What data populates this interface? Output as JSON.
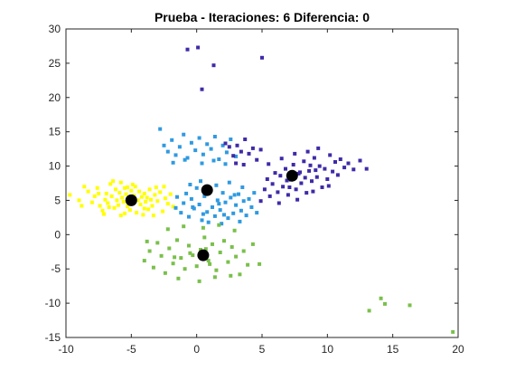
{
  "chart_data": {
    "type": "scatter",
    "title": "Prueba - Iteraciones: 6 Diferencia: 0",
    "xlabel": "",
    "ylabel": "",
    "xlim": [
      -10,
      20
    ],
    "ylim": [
      -15,
      30
    ],
    "xticks": [
      -10,
      -5,
      0,
      5,
      10,
      15,
      20
    ],
    "yticks": [
      -15,
      -10,
      -5,
      0,
      5,
      10,
      15,
      20,
      25,
      30
    ],
    "grid": false,
    "legend": "none",
    "axis_color": "#262626",
    "background": "#ffffff",
    "series": [
      {
        "color": "#ffff00",
        "points": [
          [
            -9.7,
            5.8
          ],
          [
            -9.0,
            5.0
          ],
          [
            -8.6,
            7.0
          ],
          [
            -8.3,
            6.3
          ],
          [
            -8.0,
            4.7
          ],
          [
            -7.8,
            5.6
          ],
          [
            -7.6,
            6.8
          ],
          [
            -7.4,
            4.2
          ],
          [
            -7.2,
            3.5
          ],
          [
            -7.0,
            5.1
          ],
          [
            -6.9,
            6.0
          ],
          [
            -6.8,
            4.6
          ],
          [
            -6.6,
            7.4
          ],
          [
            -6.5,
            5.6
          ],
          [
            -6.3,
            3.9
          ],
          [
            -6.2,
            6.6
          ],
          [
            -6.1,
            5.0
          ],
          [
            -6.0,
            4.3
          ],
          [
            -5.9,
            6.1
          ],
          [
            -5.8,
            2.8
          ],
          [
            -5.7,
            5.4
          ],
          [
            -5.6,
            4.8
          ],
          [
            -5.5,
            6.8
          ],
          [
            -5.4,
            5.9
          ],
          [
            -5.3,
            4.1
          ],
          [
            -5.2,
            5.2
          ],
          [
            -5.1,
            3.6
          ],
          [
            -5.0,
            6.4
          ],
          [
            -4.9,
            4.6
          ],
          [
            -4.8,
            5.7
          ],
          [
            -4.7,
            7.0
          ],
          [
            -4.6,
            3.2
          ],
          [
            -4.5,
            5.0
          ],
          [
            -4.4,
            6.3
          ],
          [
            -4.3,
            4.4
          ],
          [
            -4.2,
            5.5
          ],
          [
            -4.1,
            2.9
          ],
          [
            -4.0,
            6.0
          ],
          [
            -3.9,
            4.8
          ],
          [
            -3.8,
            5.4
          ],
          [
            -3.7,
            3.7
          ],
          [
            -3.6,
            6.6
          ],
          [
            -3.5,
            5.1
          ],
          [
            -3.4,
            4.2
          ],
          [
            -3.2,
            5.8
          ],
          [
            -3.0,
            4.9
          ],
          [
            -2.8,
            6.2
          ],
          [
            -2.6,
            3.4
          ],
          [
            -2.4,
            5.3
          ],
          [
            -2.2,
            4.5
          ],
          [
            -2.0,
            5.9
          ],
          [
            -1.8,
            4.1
          ],
          [
            -6.4,
            7.8
          ],
          [
            -5.8,
            7.6
          ],
          [
            -4.9,
            7.3
          ],
          [
            -7.1,
            3.0
          ],
          [
            -5.5,
            3.1
          ],
          [
            -3.3,
            2.8
          ],
          [
            -8.8,
            4.2
          ],
          [
            -2.5,
            7.0
          ],
          [
            -6.7,
            4.0
          ],
          [
            -4.0,
            3.8
          ],
          [
            -5.3,
            6.9
          ],
          [
            -7.5,
            6.0
          ],
          [
            -3.1,
            6.9
          ]
        ]
      },
      {
        "color": "#2f9ae0",
        "points": [
          [
            -2.8,
            15.4
          ],
          [
            -2.5,
            13.0
          ],
          [
            -2.2,
            12.1
          ],
          [
            -1.9,
            13.8
          ],
          [
            -1.6,
            11.6
          ],
          [
            -1.3,
            12.8
          ],
          [
            -1.0,
            14.6
          ],
          [
            -0.7,
            11.2
          ],
          [
            -0.4,
            13.4
          ],
          [
            -0.1,
            12.3
          ],
          [
            0.2,
            14.1
          ],
          [
            0.5,
            11.7
          ],
          [
            0.8,
            13.2
          ],
          [
            1.1,
            12.5
          ],
          [
            1.4,
            14.3
          ],
          [
            1.7,
            11.0
          ],
          [
            2.0,
            13.0
          ],
          [
            2.3,
            12.0
          ],
          [
            2.6,
            13.9
          ],
          [
            3.0,
            11.4
          ],
          [
            -1.8,
            10.5
          ],
          [
            -0.9,
            10.9
          ],
          [
            0.4,
            10.4
          ],
          [
            1.3,
            10.8
          ],
          [
            2.2,
            10.3
          ],
          [
            -1.2,
            3.2
          ],
          [
            -1.0,
            4.6
          ],
          [
            -0.8,
            6.0
          ],
          [
            -0.6,
            2.6
          ],
          [
            -0.4,
            5.2
          ],
          [
            -0.2,
            3.8
          ],
          [
            0.0,
            6.8
          ],
          [
            0.2,
            4.4
          ],
          [
            0.4,
            2.1
          ],
          [
            0.6,
            5.6
          ],
          [
            0.8,
            3.3
          ],
          [
            1.0,
            6.3
          ],
          [
            1.2,
            4.0
          ],
          [
            1.4,
            2.7
          ],
          [
            1.6,
            5.0
          ],
          [
            1.8,
            3.6
          ],
          [
            2.0,
            6.1
          ],
          [
            2.2,
            4.7
          ],
          [
            2.4,
            2.4
          ],
          [
            2.6,
            5.4
          ],
          [
            2.8,
            3.1
          ],
          [
            3.0,
            4.3
          ],
          [
            3.2,
            5.9
          ],
          [
            3.4,
            3.5
          ],
          [
            3.6,
            4.9
          ],
          [
            3.8,
            2.8
          ],
          [
            4.0,
            5.2
          ],
          [
            4.2,
            4.0
          ],
          [
            4.4,
            6.1
          ],
          [
            4.6,
            3.2
          ],
          [
            -0.5,
            7.3
          ],
          [
            0.3,
            7.8
          ],
          [
            1.5,
            7.2
          ],
          [
            2.5,
            7.6
          ],
          [
            3.5,
            6.9
          ],
          [
            -1.5,
            5.5
          ],
          [
            -1.6,
            3.9
          ],
          [
            0.9,
            1.8
          ],
          [
            1.9,
            1.6
          ],
          [
            3.3,
            1.9
          ],
          [
            0.5,
            3.0
          ],
          [
            1.7,
            4.5
          ],
          [
            2.9,
            5.8
          ],
          [
            -0.3,
            4.0
          ],
          [
            2.1,
            2.9
          ]
        ]
      },
      {
        "color": "#3f2aa8",
        "points": [
          [
            -0.7,
            27.0
          ],
          [
            0.1,
            27.3
          ],
          [
            1.3,
            24.7
          ],
          [
            5.0,
            25.8
          ],
          [
            0.4,
            21.2
          ],
          [
            2.2,
            13.3
          ],
          [
            2.5,
            12.8
          ],
          [
            2.8,
            11.5
          ],
          [
            3.1,
            13.0
          ],
          [
            3.4,
            12.1
          ],
          [
            3.7,
            13.9
          ],
          [
            4.0,
            11.8
          ],
          [
            4.3,
            12.6
          ],
          [
            4.6,
            10.9
          ],
          [
            4.9,
            12.4
          ],
          [
            3.0,
            10.4
          ],
          [
            3.6,
            10.2
          ],
          [
            5.2,
            6.6
          ],
          [
            5.4,
            8.1
          ],
          [
            5.6,
            5.6
          ],
          [
            5.8,
            7.4
          ],
          [
            6.0,
            9.0
          ],
          [
            6.2,
            6.2
          ],
          [
            6.4,
            8.6
          ],
          [
            6.6,
            7.0
          ],
          [
            6.8,
            9.6
          ],
          [
            7.0,
            5.8
          ],
          [
            7.2,
            8.0
          ],
          [
            7.4,
            10.2
          ],
          [
            7.6,
            6.6
          ],
          [
            7.8,
            8.9
          ],
          [
            8.0,
            7.5
          ],
          [
            8.2,
            10.7
          ],
          [
            8.4,
            6.1
          ],
          [
            8.6,
            9.3
          ],
          [
            8.8,
            7.8
          ],
          [
            9.0,
            11.2
          ],
          [
            9.2,
            8.4
          ],
          [
            9.4,
            10.0
          ],
          [
            9.6,
            6.9
          ],
          [
            9.8,
            9.6
          ],
          [
            10.0,
            8.1
          ],
          [
            10.2,
            11.6
          ],
          [
            10.4,
            9.2
          ],
          [
            10.6,
            10.6
          ],
          [
            10.8,
            8.7
          ],
          [
            11.0,
            11.0
          ],
          [
            11.3,
            9.8
          ],
          [
            11.6,
            10.4
          ],
          [
            12.0,
            9.5
          ],
          [
            12.5,
            10.8
          ],
          [
            13.0,
            9.6
          ],
          [
            5.5,
            10.3
          ],
          [
            6.5,
            11.1
          ],
          [
            7.5,
            11.8
          ],
          [
            8.5,
            12.1
          ],
          [
            9.3,
            12.6
          ],
          [
            4.9,
            4.9
          ],
          [
            6.3,
            4.6
          ],
          [
            7.7,
            5.1
          ],
          [
            8.9,
            6.3
          ],
          [
            10.1,
            7.1
          ],
          [
            6.9,
            7.9
          ],
          [
            7.9,
            9.1
          ],
          [
            8.3,
            8.3
          ],
          [
            9.1,
            9.4
          ],
          [
            7.1,
            6.9
          ],
          [
            8.7,
            10.1
          ]
        ]
      },
      {
        "color": "#7ac04b",
        "points": [
          [
            -4.0,
            -3.8
          ],
          [
            -3.6,
            -2.4
          ],
          [
            -3.3,
            -4.8
          ],
          [
            -3.0,
            -1.2
          ],
          [
            -2.7,
            -3.1
          ],
          [
            -2.4,
            -5.6
          ],
          [
            -2.1,
            -2.0
          ],
          [
            -1.8,
            -4.2
          ],
          [
            -1.5,
            -0.8
          ],
          [
            -1.2,
            -3.4
          ],
          [
            -0.9,
            -5.0
          ],
          [
            -0.6,
            -1.6
          ],
          [
            -0.3,
            -3.0
          ],
          [
            0.0,
            -4.6
          ],
          [
            0.3,
            -2.2
          ],
          [
            0.6,
            -0.4
          ],
          [
            0.9,
            -3.8
          ],
          [
            1.2,
            -1.4
          ],
          [
            1.5,
            -5.2
          ],
          [
            1.8,
            -2.6
          ],
          [
            2.1,
            -0.9
          ],
          [
            2.4,
            -4.0
          ],
          [
            2.7,
            -1.8
          ],
          [
            3.0,
            -3.2
          ],
          [
            3.3,
            -5.8
          ],
          [
            3.6,
            -2.4
          ],
          [
            3.9,
            -4.4
          ],
          [
            -2.2,
            0.8
          ],
          [
            -1.0,
            1.2
          ],
          [
            0.5,
            1.0
          ],
          [
            1.7,
            1.4
          ],
          [
            2.9,
            0.6
          ],
          [
            -3.8,
            -1.0
          ],
          [
            -1.4,
            -6.4
          ],
          [
            0.2,
            -6.8
          ],
          [
            1.4,
            -6.2
          ],
          [
            2.6,
            -6.0
          ],
          [
            4.3,
            -1.4
          ],
          [
            -0.5,
            -2.7
          ],
          [
            0.7,
            -2.1
          ],
          [
            -1.7,
            -3.3
          ],
          [
            1.0,
            -4.3
          ],
          [
            4.8,
            -4.3
          ],
          [
            14.1,
            -9.3
          ],
          [
            14.4,
            -10.1
          ],
          [
            13.2,
            -11.1
          ],
          [
            16.3,
            -10.3
          ],
          [
            19.6,
            -14.2
          ]
        ]
      }
    ],
    "centroids": {
      "color": "#000000",
      "points": [
        [
          -5.0,
          5.0
        ],
        [
          0.8,
          6.5
        ],
        [
          7.3,
          8.6
        ],
        [
          0.5,
          -3.0
        ]
      ]
    }
  }
}
